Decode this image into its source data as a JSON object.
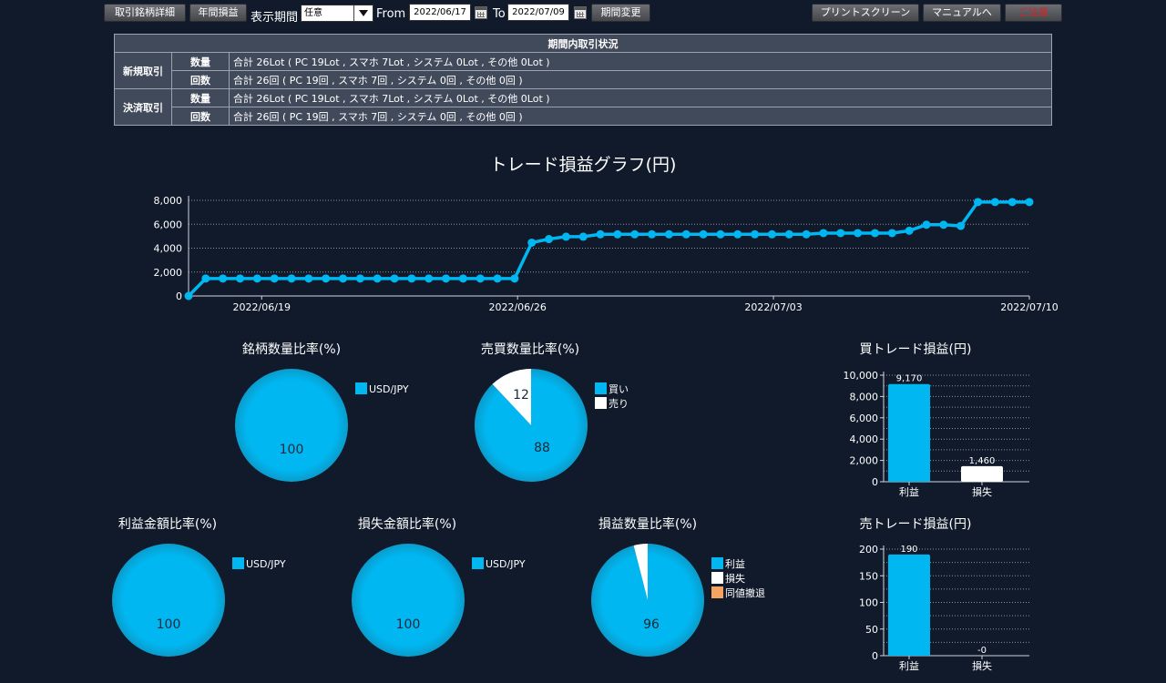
{
  "toolbar": {
    "detail_btn": "取引銘柄詳細",
    "annual_btn": "年間損益",
    "period_label": "表示期間",
    "period_select": "任意",
    "from_label": "From",
    "from_date": "2022/06/17",
    "to_label": "To",
    "to_date": "2022/07/09",
    "change_btn": "期間変更",
    "print_btn": "プリントスクリーン",
    "manual_btn": "マニュアルへ",
    "notice_btn": "ご注意"
  },
  "summary": {
    "title": "期間内取引状況",
    "rows": [
      {
        "group": "新規取引",
        "kind": "数量",
        "text": "合計 26Lot ( PC 19Lot , スマホ 7Lot , システム 0Lot , その他 0Lot )"
      },
      {
        "group": "新規取引",
        "kind": "回数",
        "text": "合計 26回 ( PC 19回 , スマホ 7回 , システム 0回 , その他 0回 )"
      },
      {
        "group": "決済取引",
        "kind": "数量",
        "text": "合計 26Lot ( PC 19Lot , スマホ 7Lot , システム 0Lot , その他 0Lot )"
      },
      {
        "group": "決済取引",
        "kind": "回数",
        "text": "合計 26回 ( PC 19回 , スマホ 7回 , システム 0回 , その他 0回 )"
      }
    ]
  },
  "colors": {
    "accent": "#00b7f1",
    "white": "#ffffff",
    "orange": "#f4a460"
  },
  "chart_data": [
    {
      "type": "line",
      "title": "トレード損益グラフ(円)",
      "ylim": [
        0,
        8000
      ],
      "yticks": [
        "0",
        "2,000",
        "4,000",
        "6,000",
        "8,000"
      ],
      "xticks": [
        "2022/06/19",
        "2022/06/26",
        "2022/07/03",
        "2022/07/10"
      ],
      "x_range": [
        "2022/06/17",
        "2022/07/10"
      ],
      "grid": true,
      "values": [
        0,
        1460,
        1460,
        1460,
        1460,
        1460,
        1460,
        1460,
        1460,
        1460,
        1460,
        1460,
        1460,
        1460,
        1460,
        1460,
        1460,
        1460,
        1460,
        1460,
        4460,
        4760,
        4960,
        4960,
        5160,
        5160,
        5160,
        5160,
        5160,
        5160,
        5160,
        5160,
        5160,
        5160,
        5160,
        5160,
        5160,
        5260,
        5260,
        5260,
        5260,
        5260,
        5460,
        5960,
        5960,
        5860,
        7860,
        7860,
        7860,
        7860
      ]
    },
    {
      "type": "pie",
      "title": "銘柄数量比率(%)",
      "slices": [
        {
          "label": "USD/JPY",
          "value": 100,
          "color": "#00b7f1"
        }
      ]
    },
    {
      "type": "pie",
      "title": "売買数量比率(%)",
      "slices": [
        {
          "label": "買い",
          "value": 88,
          "color": "#00b7f1"
        },
        {
          "label": "売り",
          "value": 12,
          "color": "#ffffff"
        }
      ]
    },
    {
      "type": "bar",
      "title": "買トレード損益(円)",
      "categories": [
        "利益",
        "損失"
      ],
      "values": [
        9170,
        1460
      ],
      "value_labels": [
        "9,170",
        "1,460"
      ],
      "bar_colors": [
        "#00b7f1",
        "#ffffff"
      ],
      "ylim": [
        0,
        10000
      ],
      "yticks": [
        "0",
        "2,000",
        "4,000",
        "6,000",
        "8,000",
        "10,000"
      ]
    },
    {
      "type": "pie",
      "title": "利益金額比率(%)",
      "slices": [
        {
          "label": "USD/JPY",
          "value": 100,
          "color": "#00b7f1"
        }
      ]
    },
    {
      "type": "pie",
      "title": "損失金額比率(%)",
      "slices": [
        {
          "label": "USD/JPY",
          "value": 100,
          "color": "#00b7f1"
        }
      ]
    },
    {
      "type": "pie",
      "title": "損益数量比率(%)",
      "slices": [
        {
          "label": "利益",
          "value": 96,
          "color": "#00b7f1"
        },
        {
          "label": "損失",
          "value": 4,
          "color": "#ffffff"
        },
        {
          "label": "同値撤退",
          "value": 0,
          "color": "#f4a460"
        }
      ]
    },
    {
      "type": "bar",
      "title": "売トレード損益(円)",
      "categories": [
        "利益",
        "損失"
      ],
      "values": [
        190,
        0
      ],
      "value_labels": [
        "190",
        "-0"
      ],
      "bar_colors": [
        "#00b7f1",
        "#ffffff"
      ],
      "ylim": [
        0,
        200
      ],
      "yticks": [
        "0",
        "50",
        "100",
        "150",
        "200"
      ]
    }
  ]
}
